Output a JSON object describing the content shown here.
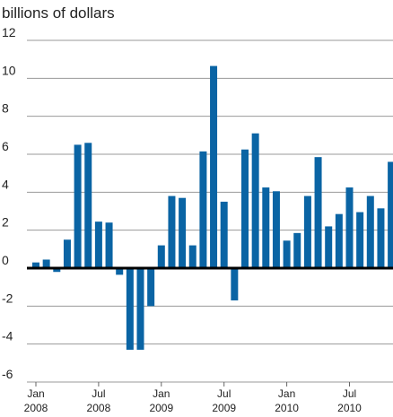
{
  "chart_data": {
    "type": "bar",
    "title": "billions of dollars",
    "categories": [
      "Jan 2008",
      null,
      null,
      null,
      null,
      null,
      "Jul 2008",
      null,
      null,
      null,
      null,
      null,
      "Jan 2009",
      null,
      null,
      null,
      null,
      null,
      "Jul 2009",
      null,
      null,
      null,
      null,
      null,
      "Jan 2010",
      null,
      null,
      null,
      null,
      null,
      "Jul 2010",
      null,
      null,
      null,
      null
    ],
    "values": [
      0.3,
      0.45,
      -0.2,
      1.5,
      6.5,
      6.6,
      2.45,
      2.4,
      -0.35,
      -4.3,
      -4.3,
      -2.0,
      1.2,
      3.8,
      3.7,
      1.2,
      6.15,
      10.65,
      3.5,
      -1.7,
      6.25,
      7.1,
      4.25,
      4.05,
      1.45,
      1.85,
      3.8,
      5.85,
      2.2,
      2.85,
      4.25,
      2.95,
      3.8,
      3.15,
      5.6
    ],
    "color": "#0a64a4",
    "ylim": [
      -6,
      12
    ],
    "yticks": [
      -6,
      -4,
      -2,
      0,
      2,
      4,
      6,
      8,
      10,
      12
    ],
    "grid": true
  }
}
